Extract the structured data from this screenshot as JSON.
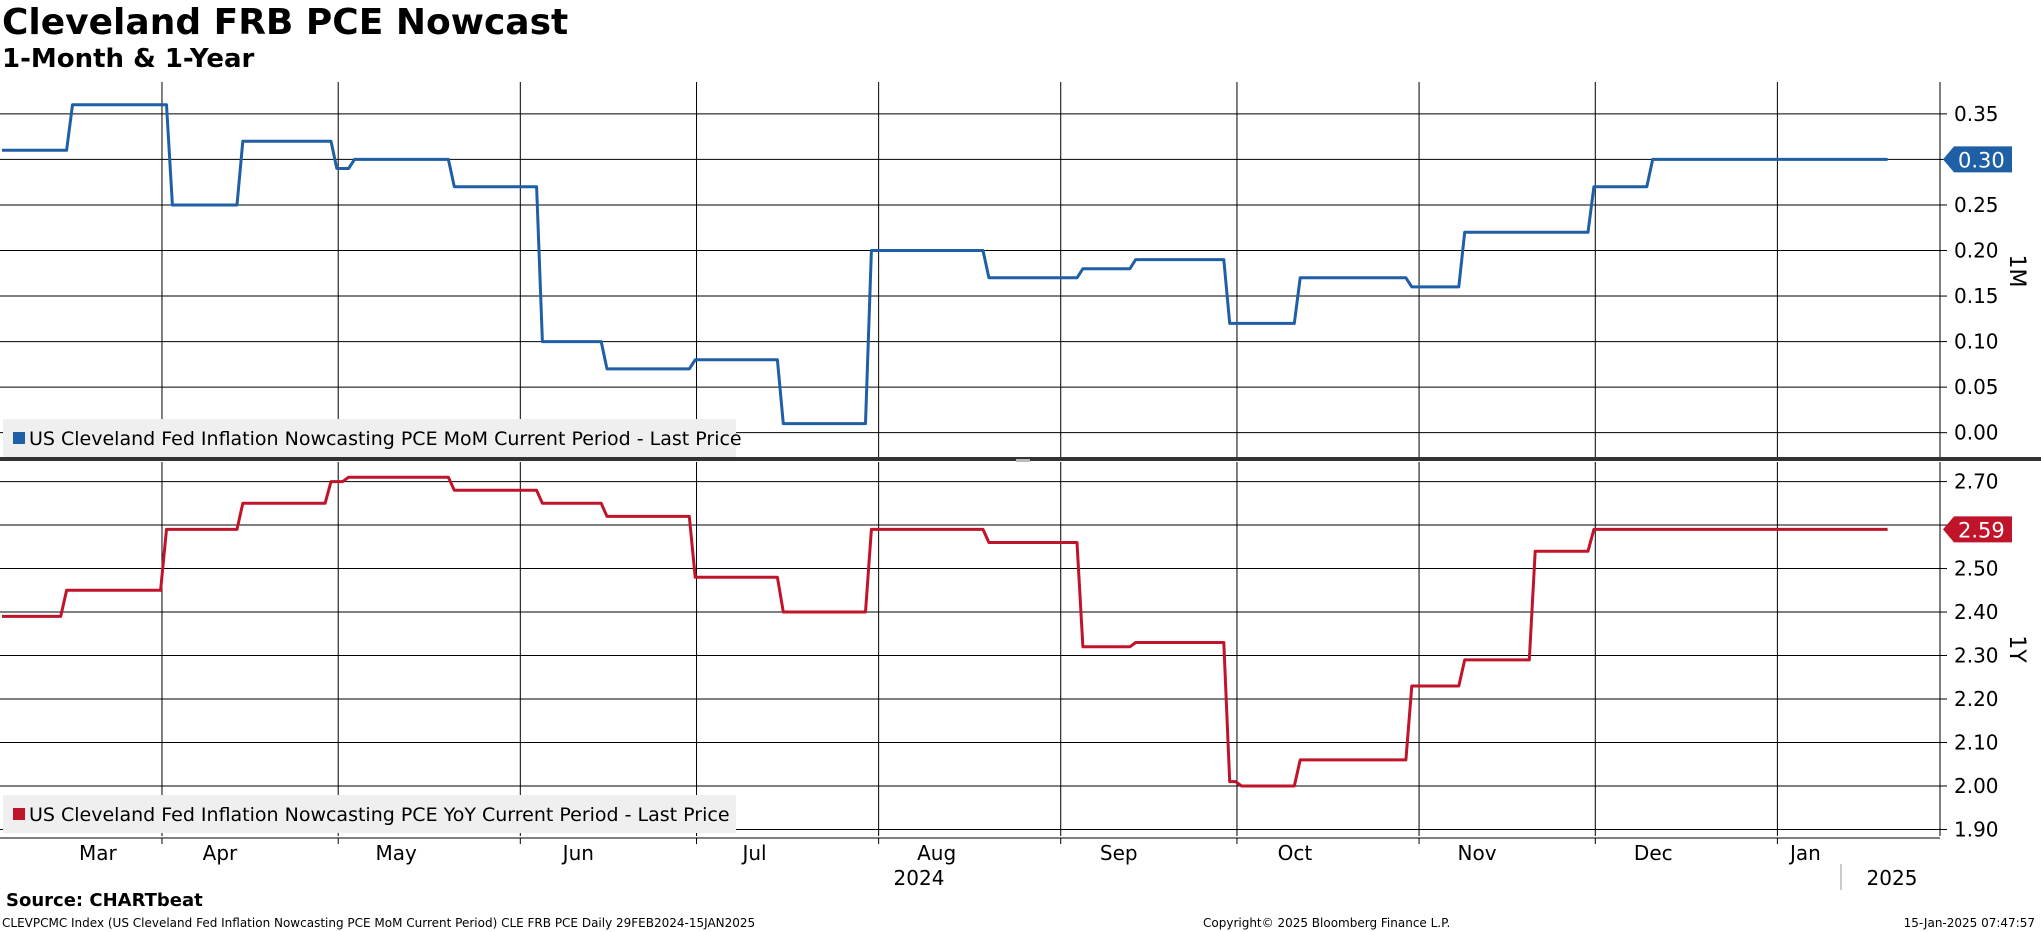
{
  "header": {
    "title": "Cleveland FRB PCE Nowcast",
    "subtitle": "1-Month & 1-Year"
  },
  "footer": {
    "source": "Source: CHARTbeat",
    "description": "CLEVPCMC Index (US Cleveland Fed Inflation Nowcasting PCE MoM Current Period) CLE FRB PCE  Daily 29FEB2024-15JAN2025",
    "copyright": "Copyright© 2025 Bloomberg Finance L.P.",
    "timestamp": "15-Jan-2025 07:47:57"
  },
  "colors": {
    "mom": "#1f5fa6",
    "yoy": "#c0142a"
  },
  "chart_data": [
    {
      "type": "line",
      "ylabel": "1M",
      "ylim": [
        -0.03,
        0.385
      ],
      "yticks": [
        "0.35",
        "0.30",
        "0.25",
        "0.20",
        "0.15",
        "0.10",
        "0.05",
        "0.00"
      ],
      "grid": true,
      "legend_position": "bottom-left",
      "series": [
        {
          "name": "US Cleveland Fed Inflation Nowcasting PCE MoM Current Period - Last Price",
          "last_value": "0.30",
          "points": [
            [
              "2024-02-29",
              0.31
            ],
            [
              "2024-03-11",
              0.31
            ],
            [
              "2024-03-12",
              0.36
            ],
            [
              "2024-03-28",
              0.36
            ],
            [
              "2024-03-29",
              0.25
            ],
            [
              "2024-04-09",
              0.25
            ],
            [
              "2024-04-10",
              0.32
            ],
            [
              "2024-04-25",
              0.32
            ],
            [
              "2024-04-26",
              0.29
            ],
            [
              "2024-04-28",
              0.29
            ],
            [
              "2024-04-29",
              0.3
            ],
            [
              "2024-05-15",
              0.3
            ],
            [
              "2024-05-16",
              0.27
            ],
            [
              "2024-05-30",
              0.27
            ],
            [
              "2024-05-31",
              0.1
            ],
            [
              "2024-06-10",
              0.1
            ],
            [
              "2024-06-11",
              0.07
            ],
            [
              "2024-06-25",
              0.07
            ],
            [
              "2024-06-26",
              0.08
            ],
            [
              "2024-07-10",
              0.08
            ],
            [
              "2024-07-11",
              0.01
            ],
            [
              "2024-07-25",
              0.01
            ],
            [
              "2024-07-26",
              0.2
            ],
            [
              "2024-08-14",
              0.2
            ],
            [
              "2024-08-15",
              0.17
            ],
            [
              "2024-08-30",
              0.17
            ],
            [
              "2024-08-31",
              0.18
            ],
            [
              "2024-09-08",
              0.18
            ],
            [
              "2024-09-09",
              0.19
            ],
            [
              "2024-09-24",
              0.19
            ],
            [
              "2024-09-25",
              0.12
            ],
            [
              "2024-10-06",
              0.12
            ],
            [
              "2024-10-07",
              0.17
            ],
            [
              "2024-10-25",
              0.17
            ],
            [
              "2024-10-26",
              0.16
            ],
            [
              "2024-11-03",
              0.16
            ],
            [
              "2024-11-04",
              0.22
            ],
            [
              "2024-11-25",
              0.22
            ],
            [
              "2024-11-26",
              0.27
            ],
            [
              "2024-12-05",
              0.27
            ],
            [
              "2024-12-06",
              0.3
            ],
            [
              "2025-01-15",
              0.3
            ]
          ]
        }
      ]
    },
    {
      "type": "line",
      "ylabel": "1Y",
      "ylim": [
        1.885,
        2.745
      ],
      "yticks": [
        "2.70",
        "2.60",
        "2.50",
        "2.40",
        "2.30",
        "2.20",
        "2.10",
        "2.00",
        "1.90"
      ],
      "grid": true,
      "legend_position": "bottom-left",
      "series": [
        {
          "name": "US Cleveland Fed Inflation Nowcasting PCE YoY Current Period - Last Price",
          "last_value": "2.59",
          "points": [
            [
              "2024-02-29",
              2.39
            ],
            [
              "2024-03-10",
              2.39
            ],
            [
              "2024-03-11",
              2.45
            ],
            [
              "2024-03-27",
              2.45
            ],
            [
              "2024-03-28",
              2.59
            ],
            [
              "2024-04-09",
              2.59
            ],
            [
              "2024-04-10",
              2.65
            ],
            [
              "2024-04-24",
              2.65
            ],
            [
              "2024-04-25",
              2.7
            ],
            [
              "2024-04-27",
              2.7
            ],
            [
              "2024-04-28",
              2.71
            ],
            [
              "2024-05-15",
              2.71
            ],
            [
              "2024-05-16",
              2.68
            ],
            [
              "2024-05-30",
              2.68
            ],
            [
              "2024-05-31",
              2.65
            ],
            [
              "2024-06-10",
              2.65
            ],
            [
              "2024-06-11",
              2.62
            ],
            [
              "2024-06-25",
              2.62
            ],
            [
              "2024-06-26",
              2.48
            ],
            [
              "2024-07-10",
              2.48
            ],
            [
              "2024-07-11",
              2.4
            ],
            [
              "2024-07-25",
              2.4
            ],
            [
              "2024-07-26",
              2.59
            ],
            [
              "2024-08-14",
              2.59
            ],
            [
              "2024-08-15",
              2.56
            ],
            [
              "2024-08-30",
              2.56
            ],
            [
              "2024-08-31",
              2.32
            ],
            [
              "2024-09-08",
              2.32
            ],
            [
              "2024-09-09",
              2.33
            ],
            [
              "2024-09-24",
              2.33
            ],
            [
              "2024-09-25",
              2.01
            ],
            [
              "2024-09-26",
              2.01
            ],
            [
              "2024-09-27",
              2.0
            ],
            [
              "2024-10-06",
              2.0
            ],
            [
              "2024-10-07",
              2.06
            ],
            [
              "2024-10-25",
              2.06
            ],
            [
              "2024-10-26",
              2.23
            ],
            [
              "2024-11-03",
              2.23
            ],
            [
              "2024-11-04",
              2.29
            ],
            [
              "2024-11-15",
              2.29
            ],
            [
              "2024-11-16",
              2.54
            ],
            [
              "2024-11-25",
              2.54
            ],
            [
              "2024-11-26",
              2.59
            ],
            [
              "2025-01-15",
              2.59
            ]
          ]
        }
      ]
    }
  ],
  "x_axis": {
    "months": [
      {
        "label": "Mar",
        "date": "2024-03-01"
      },
      {
        "label": "Apr",
        "date": "2024-04-01"
      },
      {
        "label": "May",
        "date": "2024-05-01"
      },
      {
        "label": "Jun",
        "date": "2024-06-01"
      },
      {
        "label": "Jul",
        "date": "2024-07-01"
      },
      {
        "label": "Aug",
        "date": "2024-08-01"
      },
      {
        "label": "Sep",
        "date": "2024-09-01"
      },
      {
        "label": "Oct",
        "date": "2024-10-01"
      },
      {
        "label": "Nov",
        "date": "2024-11-01"
      },
      {
        "label": "Dec",
        "date": "2024-12-01"
      },
      {
        "label": "Jan",
        "date": "2025-01-01"
      }
    ],
    "years": [
      {
        "label": "2024",
        "date": "2024-08-01"
      },
      {
        "label": "2025",
        "date": "2025-01-05"
      }
    ]
  }
}
